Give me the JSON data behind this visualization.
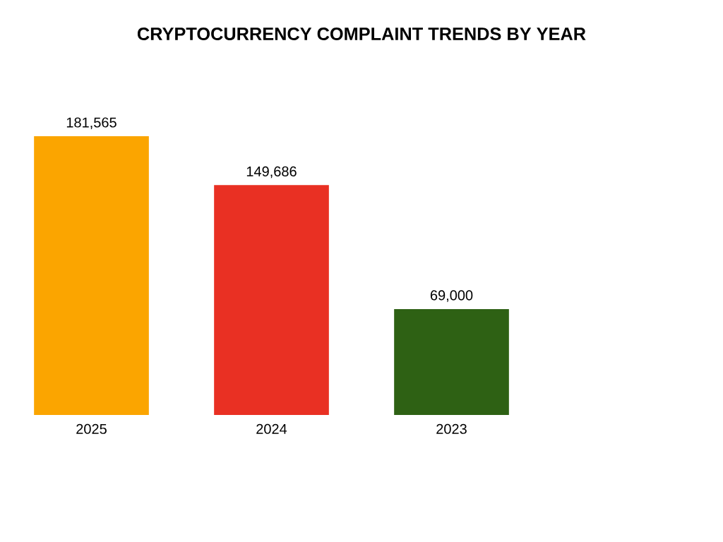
{
  "chart_data": {
    "type": "bar",
    "title": "CRYPTOCURRENCY COMPLAINT TRENDS BY YEAR",
    "categories": [
      "2025",
      "2024",
      "2023"
    ],
    "values": [
      181565,
      149686,
      69000
    ],
    "colors": [
      "#fba500",
      "#e93023",
      "#2e6114"
    ],
    "value_labels": [
      "181,565",
      "149,686",
      "69,000"
    ]
  }
}
